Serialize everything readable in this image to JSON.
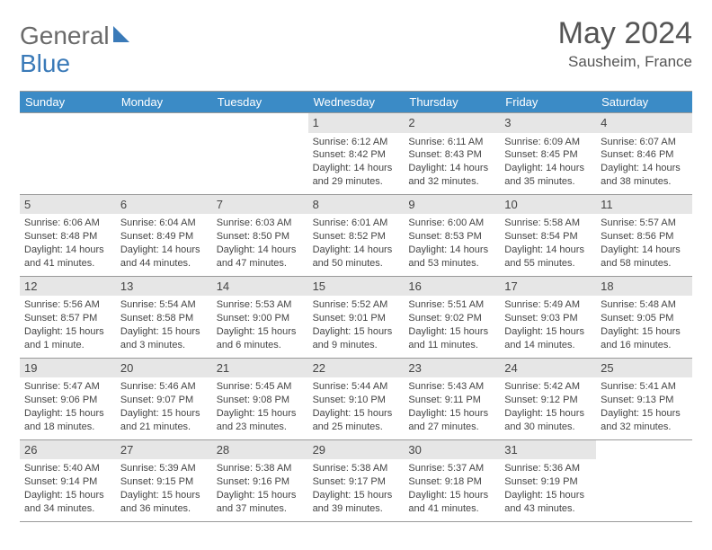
{
  "logo": {
    "part1": "General",
    "part2": "Blue"
  },
  "title": {
    "month": "May 2024",
    "location": "Sausheim, France"
  },
  "day_headers": [
    "Sunday",
    "Monday",
    "Tuesday",
    "Wednesday",
    "Thursday",
    "Friday",
    "Saturday"
  ],
  "colors": {
    "header_bg": "#3b8bc6",
    "header_fg": "#ffffff",
    "border": "#999999",
    "daynum_bg": "#e6e6e6",
    "text": "#3a3a3a",
    "logo_blue": "#3a7ab8"
  },
  "leading_blanks": 3,
  "trailing_blanks": 1,
  "days": [
    {
      "n": "1",
      "sr": "Sunrise: 6:12 AM",
      "ss": "Sunset: 8:42 PM",
      "d1": "Daylight: 14 hours",
      "d2": "and 29 minutes."
    },
    {
      "n": "2",
      "sr": "Sunrise: 6:11 AM",
      "ss": "Sunset: 8:43 PM",
      "d1": "Daylight: 14 hours",
      "d2": "and 32 minutes."
    },
    {
      "n": "3",
      "sr": "Sunrise: 6:09 AM",
      "ss": "Sunset: 8:45 PM",
      "d1": "Daylight: 14 hours",
      "d2": "and 35 minutes."
    },
    {
      "n": "4",
      "sr": "Sunrise: 6:07 AM",
      "ss": "Sunset: 8:46 PM",
      "d1": "Daylight: 14 hours",
      "d2": "and 38 minutes."
    },
    {
      "n": "5",
      "sr": "Sunrise: 6:06 AM",
      "ss": "Sunset: 8:48 PM",
      "d1": "Daylight: 14 hours",
      "d2": "and 41 minutes."
    },
    {
      "n": "6",
      "sr": "Sunrise: 6:04 AM",
      "ss": "Sunset: 8:49 PM",
      "d1": "Daylight: 14 hours",
      "d2": "and 44 minutes."
    },
    {
      "n": "7",
      "sr": "Sunrise: 6:03 AM",
      "ss": "Sunset: 8:50 PM",
      "d1": "Daylight: 14 hours",
      "d2": "and 47 minutes."
    },
    {
      "n": "8",
      "sr": "Sunrise: 6:01 AM",
      "ss": "Sunset: 8:52 PM",
      "d1": "Daylight: 14 hours",
      "d2": "and 50 minutes."
    },
    {
      "n": "9",
      "sr": "Sunrise: 6:00 AM",
      "ss": "Sunset: 8:53 PM",
      "d1": "Daylight: 14 hours",
      "d2": "and 53 minutes."
    },
    {
      "n": "10",
      "sr": "Sunrise: 5:58 AM",
      "ss": "Sunset: 8:54 PM",
      "d1": "Daylight: 14 hours",
      "d2": "and 55 minutes."
    },
    {
      "n": "11",
      "sr": "Sunrise: 5:57 AM",
      "ss": "Sunset: 8:56 PM",
      "d1": "Daylight: 14 hours",
      "d2": "and 58 minutes."
    },
    {
      "n": "12",
      "sr": "Sunrise: 5:56 AM",
      "ss": "Sunset: 8:57 PM",
      "d1": "Daylight: 15 hours",
      "d2": "and 1 minute."
    },
    {
      "n": "13",
      "sr": "Sunrise: 5:54 AM",
      "ss": "Sunset: 8:58 PM",
      "d1": "Daylight: 15 hours",
      "d2": "and 3 minutes."
    },
    {
      "n": "14",
      "sr": "Sunrise: 5:53 AM",
      "ss": "Sunset: 9:00 PM",
      "d1": "Daylight: 15 hours",
      "d2": "and 6 minutes."
    },
    {
      "n": "15",
      "sr": "Sunrise: 5:52 AM",
      "ss": "Sunset: 9:01 PM",
      "d1": "Daylight: 15 hours",
      "d2": "and 9 minutes."
    },
    {
      "n": "16",
      "sr": "Sunrise: 5:51 AM",
      "ss": "Sunset: 9:02 PM",
      "d1": "Daylight: 15 hours",
      "d2": "and 11 minutes."
    },
    {
      "n": "17",
      "sr": "Sunrise: 5:49 AM",
      "ss": "Sunset: 9:03 PM",
      "d1": "Daylight: 15 hours",
      "d2": "and 14 minutes."
    },
    {
      "n": "18",
      "sr": "Sunrise: 5:48 AM",
      "ss": "Sunset: 9:05 PM",
      "d1": "Daylight: 15 hours",
      "d2": "and 16 minutes."
    },
    {
      "n": "19",
      "sr": "Sunrise: 5:47 AM",
      "ss": "Sunset: 9:06 PM",
      "d1": "Daylight: 15 hours",
      "d2": "and 18 minutes."
    },
    {
      "n": "20",
      "sr": "Sunrise: 5:46 AM",
      "ss": "Sunset: 9:07 PM",
      "d1": "Daylight: 15 hours",
      "d2": "and 21 minutes."
    },
    {
      "n": "21",
      "sr": "Sunrise: 5:45 AM",
      "ss": "Sunset: 9:08 PM",
      "d1": "Daylight: 15 hours",
      "d2": "and 23 minutes."
    },
    {
      "n": "22",
      "sr": "Sunrise: 5:44 AM",
      "ss": "Sunset: 9:10 PM",
      "d1": "Daylight: 15 hours",
      "d2": "and 25 minutes."
    },
    {
      "n": "23",
      "sr": "Sunrise: 5:43 AM",
      "ss": "Sunset: 9:11 PM",
      "d1": "Daylight: 15 hours",
      "d2": "and 27 minutes."
    },
    {
      "n": "24",
      "sr": "Sunrise: 5:42 AM",
      "ss": "Sunset: 9:12 PM",
      "d1": "Daylight: 15 hours",
      "d2": "and 30 minutes."
    },
    {
      "n": "25",
      "sr": "Sunrise: 5:41 AM",
      "ss": "Sunset: 9:13 PM",
      "d1": "Daylight: 15 hours",
      "d2": "and 32 minutes."
    },
    {
      "n": "26",
      "sr": "Sunrise: 5:40 AM",
      "ss": "Sunset: 9:14 PM",
      "d1": "Daylight: 15 hours",
      "d2": "and 34 minutes."
    },
    {
      "n": "27",
      "sr": "Sunrise: 5:39 AM",
      "ss": "Sunset: 9:15 PM",
      "d1": "Daylight: 15 hours",
      "d2": "and 36 minutes."
    },
    {
      "n": "28",
      "sr": "Sunrise: 5:38 AM",
      "ss": "Sunset: 9:16 PM",
      "d1": "Daylight: 15 hours",
      "d2": "and 37 minutes."
    },
    {
      "n": "29",
      "sr": "Sunrise: 5:38 AM",
      "ss": "Sunset: 9:17 PM",
      "d1": "Daylight: 15 hours",
      "d2": "and 39 minutes."
    },
    {
      "n": "30",
      "sr": "Sunrise: 5:37 AM",
      "ss": "Sunset: 9:18 PM",
      "d1": "Daylight: 15 hours",
      "d2": "and 41 minutes."
    },
    {
      "n": "31",
      "sr": "Sunrise: 5:36 AM",
      "ss": "Sunset: 9:19 PM",
      "d1": "Daylight: 15 hours",
      "d2": "and 43 minutes."
    }
  ]
}
